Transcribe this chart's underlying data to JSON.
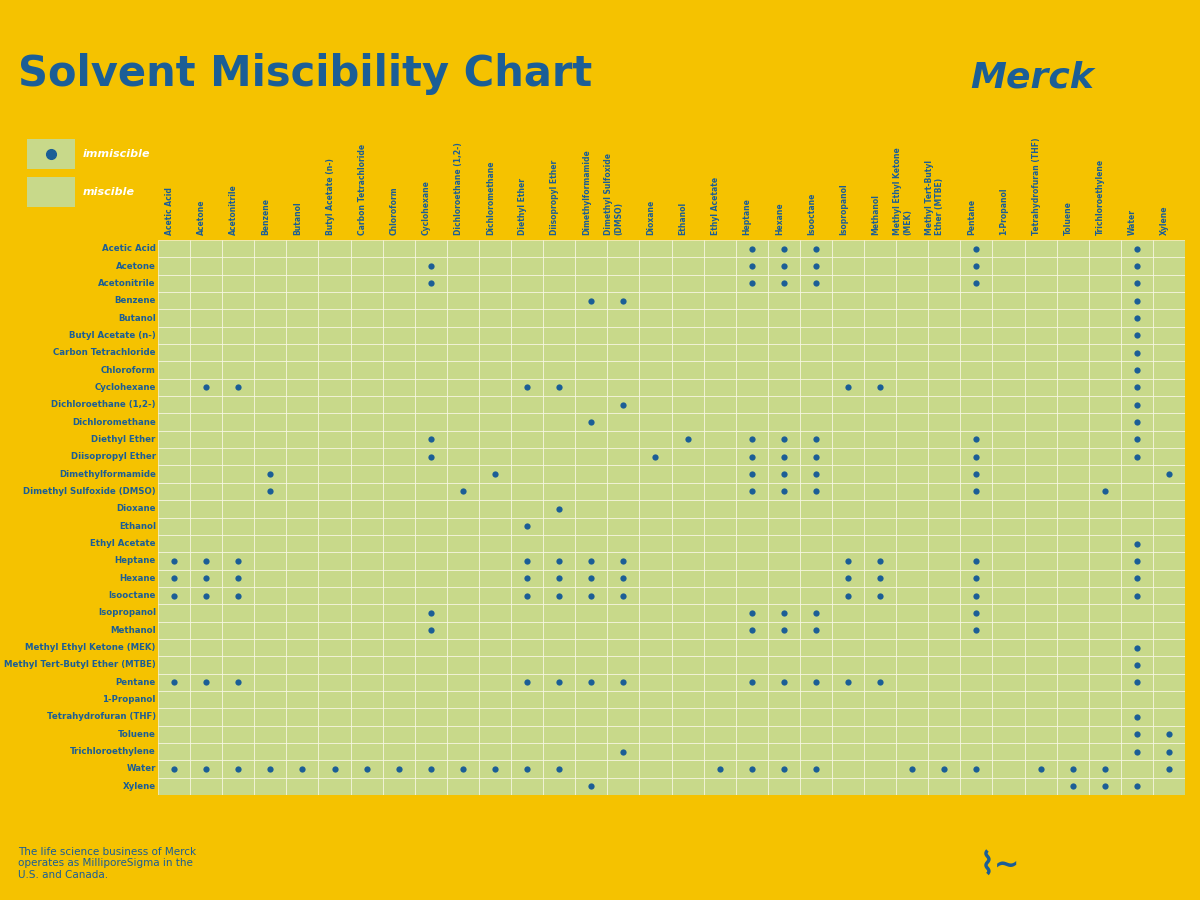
{
  "title": "Solvent Miscibility Chart",
  "bg_color": "#F5C200",
  "chart_bg": "#FFFFFF",
  "cell_color": "#C8D98A",
  "grid_color": "#FFFFFF",
  "dot_color": "#1B5E96",
  "text_color": "#1B5E96",
  "legend_bg": "#1B5E96",
  "solvents_rows": [
    "Acetic Acid",
    "Acetone",
    "Acetonitrile",
    "Benzene",
    "Butanol",
    "Butyl Acetate (n-)",
    "Carbon Tetrachloride",
    "Chloroform",
    "Cyclohexane",
    "Dichloroethane (1,2-)",
    "Dichloromethane",
    "Diethyl Ether",
    "Diisopropyl Ether",
    "Dimethylformamide",
    "Dimethyl Sulfoxide (DMSO)",
    "Dioxane",
    "Ethanol",
    "Ethyl Acetate",
    "Heptane",
    "Hexane",
    "Isooctane",
    "Isopropanol",
    "Methanol",
    "Methyl Ethyl Ketone (MEK)",
    "Methyl Tert-Butyl Ether (MTBE)",
    "Pentane",
    "1-Propanol",
    "Tetrahydrofuran (THF)",
    "Toluene",
    "Trichloroethylene",
    "Water",
    "Xylene"
  ],
  "solvents_cols": [
    "Acetic Acid",
    "Acetone",
    "Acetonitrile",
    "Benzene",
    "Butanol",
    "Butyl Acetate (n-)",
    "Carbon Tetrachloride",
    "Chloroform",
    "Cyclohexane",
    "Dichloroethane (1,2-)",
    "Dichloromethane",
    "Diethyl Ether",
    "Diisopropyl Ether",
    "Dimethylformamide",
    "Dimethyl Sulfoxide\n(DMSO)",
    "Dioxane",
    "Ethanol",
    "Ethyl Acetate",
    "Heptane",
    "Hexane",
    "Isooctane",
    "Isopropanol",
    "Methanol",
    "Methyl Ethyl Ketone\n(MEK)",
    "Methyl Tert-Butyl\nEther (MTBE)",
    "Pentane",
    "1-Propanol",
    "Tetrahydrofuran (THF)",
    "Toluene",
    "Trichloroethylene",
    "Water",
    "Xylene"
  ],
  "immiscible_pairs": [
    [
      0,
      18
    ],
    [
      0,
      19
    ],
    [
      0,
      20
    ],
    [
      0,
      25
    ],
    [
      2,
      8
    ],
    [
      2,
      18
    ],
    [
      2,
      19
    ],
    [
      2,
      20
    ],
    [
      2,
      25
    ],
    [
      3,
      30
    ],
    [
      4,
      30
    ],
    [
      5,
      30
    ],
    [
      6,
      30
    ],
    [
      7,
      30
    ],
    [
      8,
      1
    ],
    [
      8,
      11
    ],
    [
      8,
      12
    ],
    [
      8,
      21
    ],
    [
      8,
      30
    ],
    [
      9,
      30
    ],
    [
      10,
      30
    ],
    [
      11,
      16
    ],
    [
      11,
      30
    ],
    [
      12,
      15
    ],
    [
      12,
      30
    ],
    [
      13,
      3
    ],
    [
      13,
      10
    ],
    [
      13,
      18
    ],
    [
      13,
      19
    ],
    [
      13,
      20
    ],
    [
      13,
      25
    ],
    [
      13,
      31
    ],
    [
      14,
      3
    ],
    [
      14,
      9
    ],
    [
      14,
      18
    ],
    [
      14,
      19
    ],
    [
      14,
      20
    ],
    [
      14,
      25
    ],
    [
      14,
      29
    ],
    [
      17,
      30
    ],
    [
      18,
      1
    ],
    [
      18,
      11
    ],
    [
      18,
      12
    ],
    [
      18,
      21
    ],
    [
      18,
      25
    ],
    [
      19,
      0
    ],
    [
      19,
      1
    ],
    [
      19,
      11
    ],
    [
      19,
      12
    ],
    [
      19,
      21
    ],
    [
      19,
      25
    ],
    [
      20,
      1
    ],
    [
      20,
      11
    ],
    [
      20,
      12
    ],
    [
      20,
      21
    ],
    [
      20,
      25
    ],
    [
      22,
      8
    ],
    [
      22,
      18
    ],
    [
      22,
      19
    ],
    [
      22,
      20
    ],
    [
      22,
      25
    ],
    [
      23,
      30
    ],
    [
      24,
      30
    ],
    [
      25,
      0
    ],
    [
      25,
      1
    ],
    [
      25,
      11
    ],
    [
      25,
      12
    ],
    [
      25,
      21
    ],
    [
      28,
      30
    ],
    [
      30,
      0
    ],
    [
      30,
      1
    ],
    [
      30,
      2
    ],
    [
      30,
      3
    ],
    [
      30,
      4
    ],
    [
      30,
      5
    ],
    [
      30,
      6
    ],
    [
      30,
      7
    ],
    [
      30,
      8
    ],
    [
      30,
      9
    ],
    [
      30,
      10
    ],
    [
      30,
      11
    ],
    [
      30,
      12
    ],
    [
      30,
      17
    ],
    [
      30,
      18
    ],
    [
      30,
      19
    ],
    [
      30,
      20
    ],
    [
      30,
      23
    ],
    [
      30,
      24
    ],
    [
      30,
      25
    ],
    [
      30,
      27
    ],
    [
      30,
      28
    ],
    [
      30,
      29
    ],
    [
      30,
      31
    ],
    [
      31,
      28
    ],
    [
      31,
      29
    ]
  ],
  "footer_text": "The life science business of Merck\noperates as MilliporeSigma in the\nU.S. and Canada.",
  "title_fontsize": 30,
  "row_label_fontsize": 6.2,
  "col_label_fontsize": 5.5,
  "dot_size": 4.5
}
